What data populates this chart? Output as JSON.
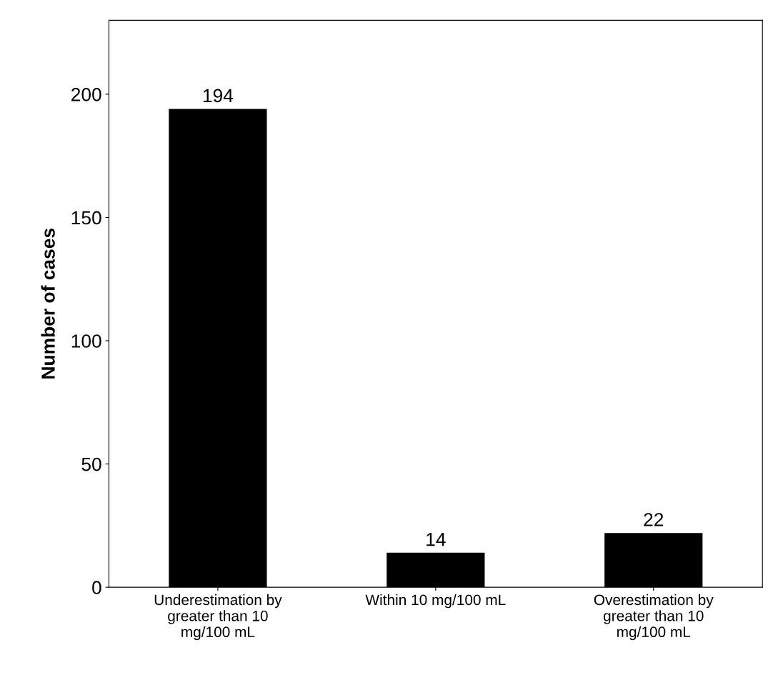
{
  "chart_data": {
    "type": "bar",
    "ylabel": "Number of cases",
    "categories": [
      "Underestimation by\ngreater than 10\nmg/100 mL",
      "Within 10 mg/100 mL",
      "Overestimation by\ngreater than 10\nmg/100 mL"
    ],
    "values": [
      194,
      14,
      22
    ],
    "color": "#000000",
    "ylim": [
      0,
      230
    ],
    "yticks": [
      0,
      50,
      100,
      150,
      200
    ],
    "data_labels": true,
    "grid": false,
    "legend": false
  }
}
